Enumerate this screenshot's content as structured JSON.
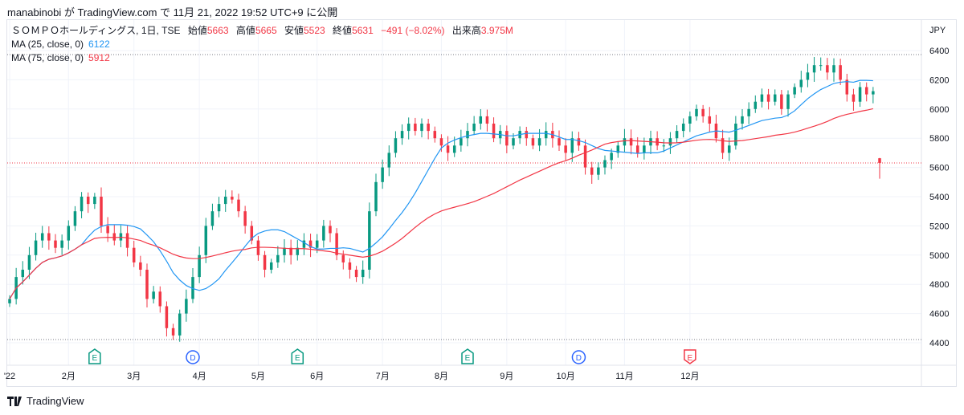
{
  "publisher_line": "manabinobi が TradingView.com で 11月 21, 2022 19:52 UTC+9 に公開",
  "legend": {
    "symbol": "ＳＯＭＰＯホールディングス, 1日, TSE",
    "open_label": "始値",
    "open": "5663",
    "high_label": "高値",
    "high": "5665",
    "low_label": "安値",
    "low": "5523",
    "close_label": "終値",
    "close": "5631",
    "change": "−491 (−8.02%)",
    "volume_label": "出来高",
    "volume": "3.975M",
    "ma1_label": "MA (25, close, 0)",
    "ma1_value": "6122",
    "ma2_label": "MA (75, close, 0)",
    "ma2_value": "5912"
  },
  "footer": {
    "brand": "TradingView"
  },
  "chart_data": {
    "type": "candlestick",
    "currency": "JPY",
    "ylim": [
      4350,
      6480
    ],
    "yticks": [
      6400,
      6200,
      6000,
      5800,
      5600,
      5400,
      5200,
      5000,
      4800,
      4600,
      4400
    ],
    "xticks": [
      {
        "label": "'22",
        "i": 0
      },
      {
        "label": "2月",
        "i": 9
      },
      {
        "label": "3月",
        "i": 19
      },
      {
        "label": "4月",
        "i": 29
      },
      {
        "label": "5月",
        "i": 38
      },
      {
        "label": "6月",
        "i": 47
      },
      {
        "label": "7月",
        "i": 57
      },
      {
        "label": "8月",
        "i": 66
      },
      {
        "label": "9月",
        "i": 76
      },
      {
        "label": "10月",
        "i": 85
      },
      {
        "label": "11月",
        "i": 94
      },
      {
        "label": "12月",
        "i": 104
      }
    ],
    "closes": [
      4700,
      4850,
      4900,
      5000,
      5100,
      5150,
      5100,
      5050,
      5100,
      5200,
      5300,
      5400,
      5350,
      5400,
      5200,
      5150,
      5100,
      5150,
      5050,
      4950,
      4900,
      4700,
      4750,
      4650,
      4500,
      4450,
      4600,
      4700,
      4850,
      5000,
      5200,
      5300,
      5350,
      5400,
      5380,
      5300,
      5200,
      5100,
      5000,
      4900,
      4950,
      5000,
      5050,
      5000,
      5050,
      5100,
      5050,
      5100,
      5200,
      5150,
      5000,
      4950,
      4900,
      4850,
      4900,
      5300,
      5500,
      5600,
      5700,
      5800,
      5850,
      5900,
      5850,
      5900,
      5850,
      5800,
      5750,
      5700,
      5750,
      5800,
      5850,
      5900,
      5950,
      5900,
      5800,
      5850,
      5750,
      5800,
      5850,
      5800,
      5750,
      5800,
      5850,
      5800,
      5750,
      5700,
      5800,
      5750,
      5600,
      5550,
      5600,
      5650,
      5700,
      5750,
      5800,
      5750,
      5700,
      5750,
      5800,
      5750,
      5750,
      5800,
      5850,
      5900,
      5950,
      6000,
      5950,
      5900,
      5800,
      5700,
      5750,
      5900,
      5950,
      6000,
      6050,
      6100,
      6050,
      6100,
      6000,
      6100,
      6150,
      6200,
      6250,
      6300,
      6300,
      6250,
      6300,
      6200,
      6100,
      6050,
      6150,
      6100,
      6122
    ],
    "last_candle": {
      "open": 5663,
      "high": 5665,
      "low": 5523,
      "close": 5631
    },
    "ma_series": [
      {
        "name": "MA 25",
        "color": "#2196f3",
        "window": 12
      },
      {
        "name": "MA 75",
        "color": "#f23645",
        "window": 37
      }
    ],
    "events": [
      {
        "type": "E",
        "i": 13,
        "color": "#089981"
      },
      {
        "type": "D",
        "i": 28,
        "color": "#2962ff"
      },
      {
        "type": "E",
        "i": 44,
        "color": "#089981"
      },
      {
        "type": "E",
        "i": 70,
        "color": "#089981"
      },
      {
        "type": "D",
        "i": 87,
        "color": "#2962ff"
      },
      {
        "type": "E",
        "i": 104,
        "color": "#f23645"
      }
    ],
    "up_color": "#089981",
    "down_color": "#f23645"
  }
}
